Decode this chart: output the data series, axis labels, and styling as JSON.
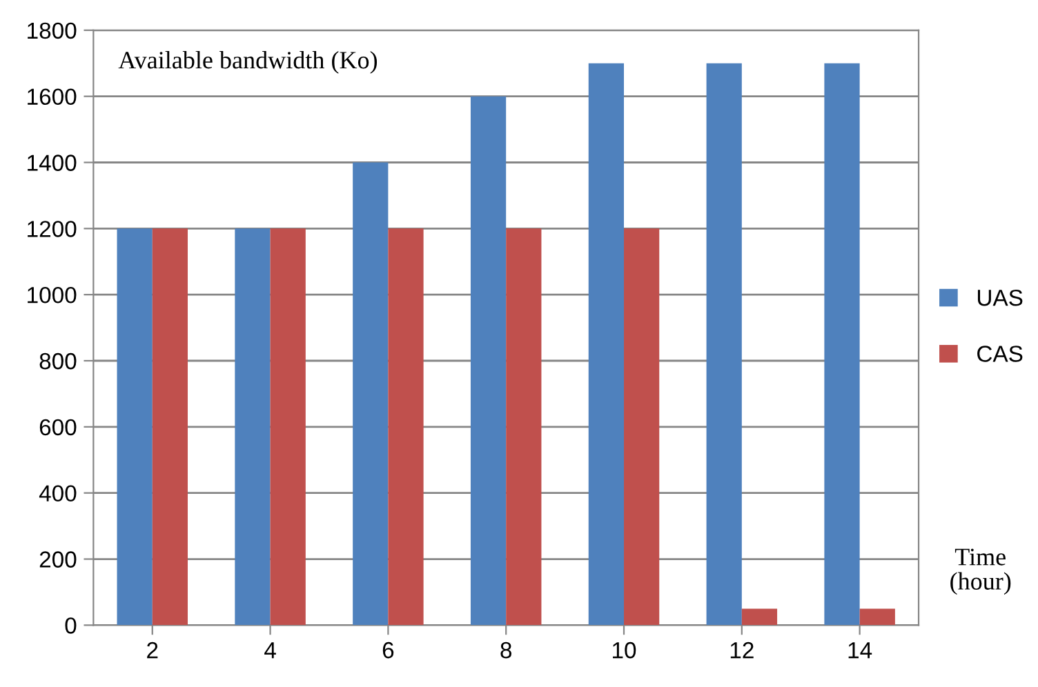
{
  "chart_data": {
    "type": "bar",
    "ylabel": "Available bandwidth (Ko)",
    "xlabel": "Time\n(hour)",
    "categories": [
      "2",
      "4",
      "6",
      "8",
      "10",
      "12",
      "14"
    ],
    "series": [
      {
        "name": "UAS",
        "color": "#4f81bd",
        "values": [
          1200,
          1200,
          1400,
          1600,
          1700,
          1700,
          1700
        ]
      },
      {
        "name": "CAS",
        "color": "#c0504d",
        "values": [
          1200,
          1200,
          1200,
          1200,
          1200,
          50,
          50
        ]
      }
    ],
    "ylim": [
      0,
      1800
    ],
    "yticks": [
      0,
      200,
      400,
      600,
      800,
      1000,
      1200,
      1400,
      1600,
      1800
    ],
    "grid": "y",
    "legend": "right"
  }
}
